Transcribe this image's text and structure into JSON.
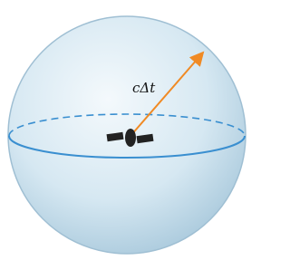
{
  "arrow_label": "cΔt"
}
